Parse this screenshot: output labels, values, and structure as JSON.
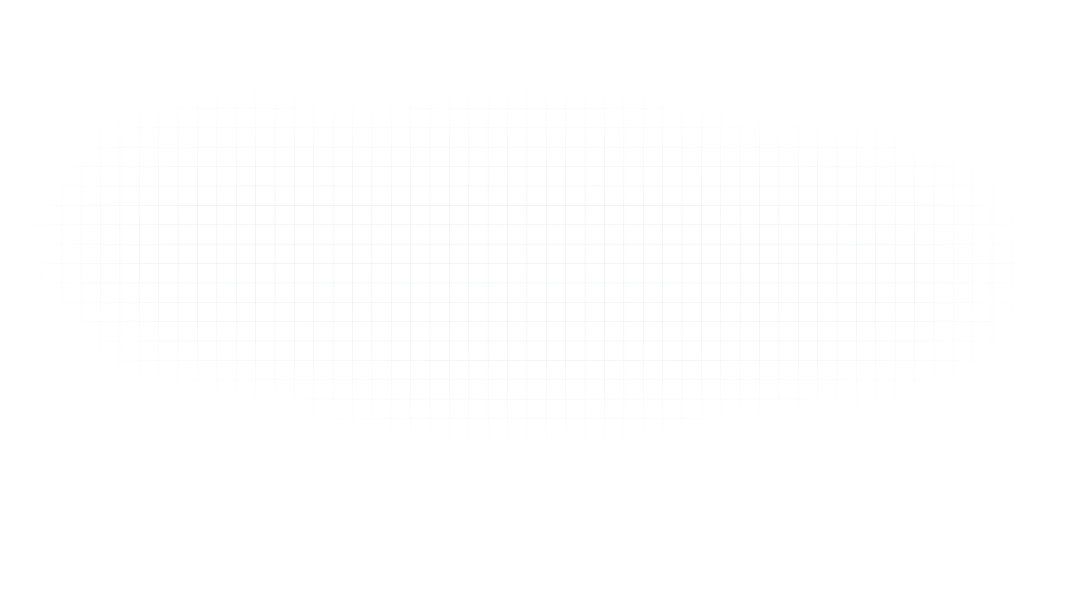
{
  "page": {
    "background_color": "#ffffff",
    "grid_line_color": "#ecedf0"
  }
}
